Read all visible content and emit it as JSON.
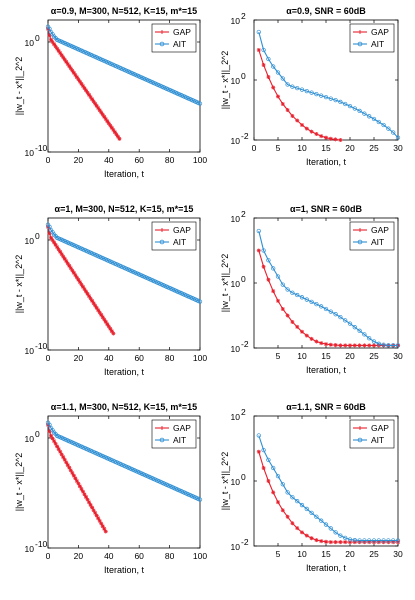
{
  "colors": {
    "GAP": "#e8212e",
    "AIT": "#2f8fd3"
  },
  "chart_data": [
    {
      "type": "line",
      "title": "α=0.9, M=300, N=512, K=15, m*=15",
      "xlabel": "Iteration, t",
      "ylabel": "||w_t - x*||_2^2",
      "yscale": "log",
      "xlim": [
        0,
        100
      ],
      "ylim_exp": [
        -10,
        2
      ],
      "xticks": [
        "0",
        "20",
        "40",
        "60",
        "80",
        "100"
      ],
      "yticks": [
        {
          "base": "10",
          "exp": "0"
        },
        {
          "base": "10",
          "exp": "-10"
        }
      ],
      "legend": "top-right",
      "series": [
        {
          "name": "GAP",
          "x": [
            0,
            1,
            2,
            47
          ],
          "y_exp": [
            1.2,
            0.6,
            0.2,
            -8.8
          ]
        },
        {
          "name": "AIT",
          "x": [
            0,
            1,
            2,
            4,
            6,
            100
          ],
          "y_exp": [
            1.4,
            1.2,
            0.9,
            0.5,
            0.2,
            -5.6
          ]
        }
      ]
    },
    {
      "type": "line",
      "title": "α=0.9, SNR = 60dB",
      "xlabel": "Iteration, t",
      "ylabel": "||w_t - x*||_2^2",
      "yscale": "log",
      "xlim": [
        0,
        30
      ],
      "ylim_exp": [
        -2,
        2
      ],
      "xticks": [
        "0",
        "5",
        "10",
        "15",
        "20",
        "25",
        "30"
      ],
      "yticks": [
        {
          "base": "10",
          "exp": "2"
        },
        {
          "base": "10",
          "exp": "0"
        },
        {
          "base": "10",
          "exp": "-2"
        }
      ],
      "legend": "top-right",
      "series": [
        {
          "name": "GAP",
          "x": [
            1,
            2,
            3,
            4,
            5,
            6,
            7,
            8,
            9,
            10,
            11,
            12,
            13,
            14,
            15,
            16,
            17,
            18
          ],
          "y_exp": [
            1.0,
            0.5,
            0.1,
            -0.25,
            -0.55,
            -0.8,
            -1.0,
            -1.2,
            -1.35,
            -1.5,
            -1.62,
            -1.72,
            -1.8,
            -1.87,
            -1.92,
            -1.96,
            -1.98,
            -2.0
          ]
        },
        {
          "name": "AIT",
          "x": [
            1,
            2,
            3,
            4,
            5,
            6,
            7,
            8,
            9,
            10,
            11,
            12,
            13,
            14,
            15,
            16,
            17,
            18,
            19,
            20,
            21,
            22,
            23,
            24,
            25,
            26,
            27,
            28,
            29,
            30
          ],
          "y_exp": [
            1.6,
            1.0,
            0.7,
            0.45,
            0.25,
            0.05,
            -0.15,
            -0.22,
            -0.27,
            -0.32,
            -0.37,
            -0.42,
            -0.47,
            -0.52,
            -0.57,
            -0.62,
            -0.67,
            -0.73,
            -0.8,
            -0.87,
            -0.95,
            -1.03,
            -1.12,
            -1.21,
            -1.3,
            -1.4,
            -1.5,
            -1.62,
            -1.75,
            -1.92
          ]
        }
      ]
    },
    {
      "type": "line",
      "title": "α=1, M=300, N=512, K=15, m*=15",
      "xlabel": "Iteration, t",
      "ylabel": "||w_t - x*||_2^2",
      "yscale": "log",
      "xlim": [
        0,
        100
      ],
      "ylim_exp": [
        -10,
        2
      ],
      "xticks": [
        "0",
        "20",
        "40",
        "60",
        "80",
        "100"
      ],
      "yticks": [
        {
          "base": "10",
          "exp": "0"
        },
        {
          "base": "10",
          "exp": "-10"
        }
      ],
      "legend": "top-right",
      "series": [
        {
          "name": "GAP",
          "x": [
            0,
            1,
            2,
            43
          ],
          "y_exp": [
            1.2,
            0.6,
            0.2,
            -8.5
          ]
        },
        {
          "name": "AIT",
          "x": [
            0,
            1,
            2,
            4,
            6,
            100
          ],
          "y_exp": [
            1.4,
            1.2,
            0.9,
            0.5,
            0.2,
            -5.6
          ]
        }
      ]
    },
    {
      "type": "line",
      "title": "α=1, SNR = 60dB",
      "xlabel": "Iteration, t",
      "ylabel": "||w_t - x*||_2^2",
      "yscale": "log",
      "xlim": [
        0,
        30
      ],
      "ylim_exp": [
        -2,
        2
      ],
      "xticks": [
        "5",
        "10",
        "15",
        "20",
        "25",
        "30"
      ],
      "yticks": [
        {
          "base": "10",
          "exp": "2"
        },
        {
          "base": "10",
          "exp": "0"
        },
        {
          "base": "10",
          "exp": "-2"
        }
      ],
      "legend": "top-right",
      "series": [
        {
          "name": "GAP",
          "x": [
            1,
            2,
            3,
            4,
            5,
            6,
            7,
            8,
            9,
            10,
            11,
            12,
            13,
            14,
            15,
            16,
            17,
            18,
            19,
            20,
            21,
            22,
            23,
            24,
            25,
            26,
            27,
            28,
            29,
            30
          ],
          "y_exp": [
            1.0,
            0.5,
            0.1,
            -0.25,
            -0.55,
            -0.8,
            -1.0,
            -1.2,
            -1.35,
            -1.5,
            -1.62,
            -1.72,
            -1.8,
            -1.85,
            -1.88,
            -1.9,
            -1.91,
            -1.92,
            -1.92,
            -1.92,
            -1.92,
            -1.92,
            -1.92,
            -1.92,
            -1.92,
            -1.92,
            -1.92,
            -1.92,
            -1.92,
            -1.92
          ]
        },
        {
          "name": "AIT",
          "x": [
            1,
            2,
            3,
            4,
            5,
            6,
            7,
            8,
            9,
            10,
            11,
            12,
            13,
            14,
            15,
            16,
            17,
            18,
            19,
            20,
            21,
            22,
            23,
            24,
            25,
            26,
            27,
            28,
            29,
            30
          ],
          "y_exp": [
            1.6,
            1.0,
            0.7,
            0.45,
            0.2,
            -0.05,
            -0.2,
            -0.3,
            -0.37,
            -0.44,
            -0.51,
            -0.58,
            -0.65,
            -0.72,
            -0.8,
            -0.88,
            -0.96,
            -1.05,
            -1.15,
            -1.25,
            -1.36,
            -1.47,
            -1.58,
            -1.7,
            -1.8,
            -1.87,
            -1.9,
            -1.92,
            -1.92,
            -1.92
          ]
        }
      ]
    },
    {
      "type": "line",
      "title": "α=1.1, M=300, N=512, K=15, m*=15",
      "xlabel": "Iteration, t",
      "ylabel": "||w_t - x*||_2^2",
      "yscale": "log",
      "xlim": [
        0,
        100
      ],
      "ylim_exp": [
        -10,
        2
      ],
      "xticks": [
        "0",
        "20",
        "40",
        "60",
        "80",
        "100"
      ],
      "yticks": [
        {
          "base": "10",
          "exp": "0"
        },
        {
          "base": "10",
          "exp": "-10"
        }
      ],
      "legend": "top-right",
      "series": [
        {
          "name": "GAP",
          "x": [
            0,
            1,
            2,
            38
          ],
          "y_exp": [
            1.2,
            0.6,
            0.2,
            -8.5
          ]
        },
        {
          "name": "AIT",
          "x": [
            0,
            1,
            2,
            4,
            6,
            100
          ],
          "y_exp": [
            1.4,
            1.2,
            0.9,
            0.5,
            0.2,
            -5.6
          ]
        }
      ]
    },
    {
      "type": "line",
      "title": "α=1.1, SNR = 60dB",
      "xlabel": "Iteration, t",
      "ylabel": "||w_t - x*||_2^2",
      "yscale": "log",
      "xlim": [
        0,
        30
      ],
      "ylim_exp": [
        -2,
        2
      ],
      "xticks": [
        "5",
        "10",
        "15",
        "20",
        "25",
        "30"
      ],
      "yticks": [
        {
          "base": "10",
          "exp": "2"
        },
        {
          "base": "10",
          "exp": "0"
        },
        {
          "base": "10",
          "exp": "-2"
        }
      ],
      "legend": "top-right",
      "series": [
        {
          "name": "GAP",
          "x": [
            1,
            2,
            3,
            4,
            5,
            6,
            7,
            8,
            9,
            10,
            11,
            12,
            13,
            14,
            15,
            16,
            17,
            18,
            19,
            20,
            21,
            22,
            23,
            24,
            25,
            26,
            27,
            28,
            29,
            30
          ],
          "y_exp": [
            0.9,
            0.4,
            0.0,
            -0.35,
            -0.65,
            -0.9,
            -1.1,
            -1.3,
            -1.45,
            -1.58,
            -1.68,
            -1.76,
            -1.82,
            -1.85,
            -1.87,
            -1.88,
            -1.88,
            -1.88,
            -1.88,
            -1.88,
            -1.88,
            -1.88,
            -1.88,
            -1.88,
            -1.88,
            -1.88,
            -1.88,
            -1.88,
            -1.88,
            -1.88
          ]
        },
        {
          "name": "AIT",
          "x": [
            1,
            2,
            3,
            4,
            5,
            6,
            7,
            8,
            9,
            10,
            11,
            12,
            13,
            14,
            15,
            16,
            17,
            18,
            19,
            20,
            21,
            22,
            23,
            24,
            25,
            26,
            27,
            28,
            29,
            30
          ],
          "y_exp": [
            1.4,
            0.95,
            0.65,
            0.4,
            0.15,
            -0.1,
            -0.35,
            -0.5,
            -0.62,
            -0.74,
            -0.86,
            -0.98,
            -1.1,
            -1.22,
            -1.34,
            -1.46,
            -1.58,
            -1.68,
            -1.75,
            -1.8,
            -1.82,
            -1.83,
            -1.83,
            -1.83,
            -1.83,
            -1.83,
            -1.83,
            -1.83,
            -1.83,
            -1.83
          ]
        }
      ]
    }
  ]
}
